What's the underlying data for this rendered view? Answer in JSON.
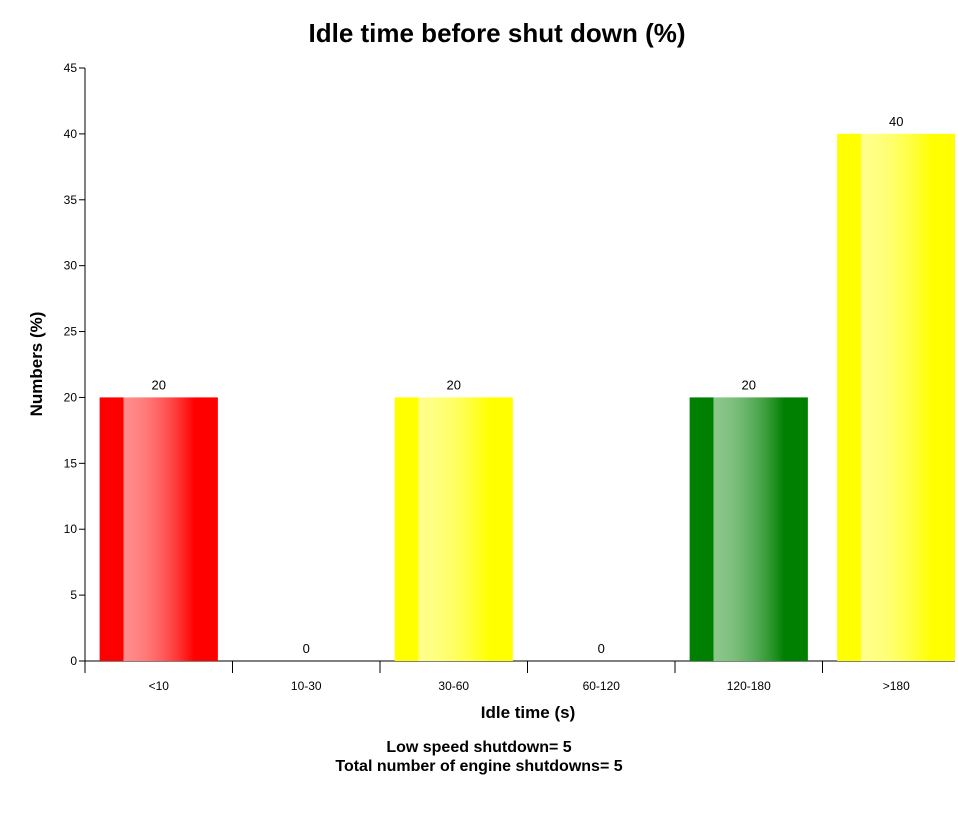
{
  "chart_data": {
    "type": "bar",
    "title": "Idle time before shut down (%)",
    "xlabel": "Idle time (s)",
    "ylabel": "Numbers (%)",
    "categories": [
      "<10",
      "10-30",
      "30-60",
      "60-120",
      "120-180",
      ">180"
    ],
    "values": [
      20,
      0,
      20,
      0,
      20,
      40
    ],
    "bar_colors": [
      "#ff0000",
      "#ffff00",
      "#ffff00",
      "#ffff00",
      "#008000",
      "#ffff00"
    ],
    "ylim": [
      0,
      45
    ],
    "yticks": [
      0,
      5,
      10,
      15,
      20,
      25,
      30,
      35,
      40,
      45
    ],
    "grid": false,
    "legend": "none"
  },
  "footer": {
    "line1": "Low speed shutdown= 5",
    "line2": "Total number of engine shutdowns= 5"
  }
}
